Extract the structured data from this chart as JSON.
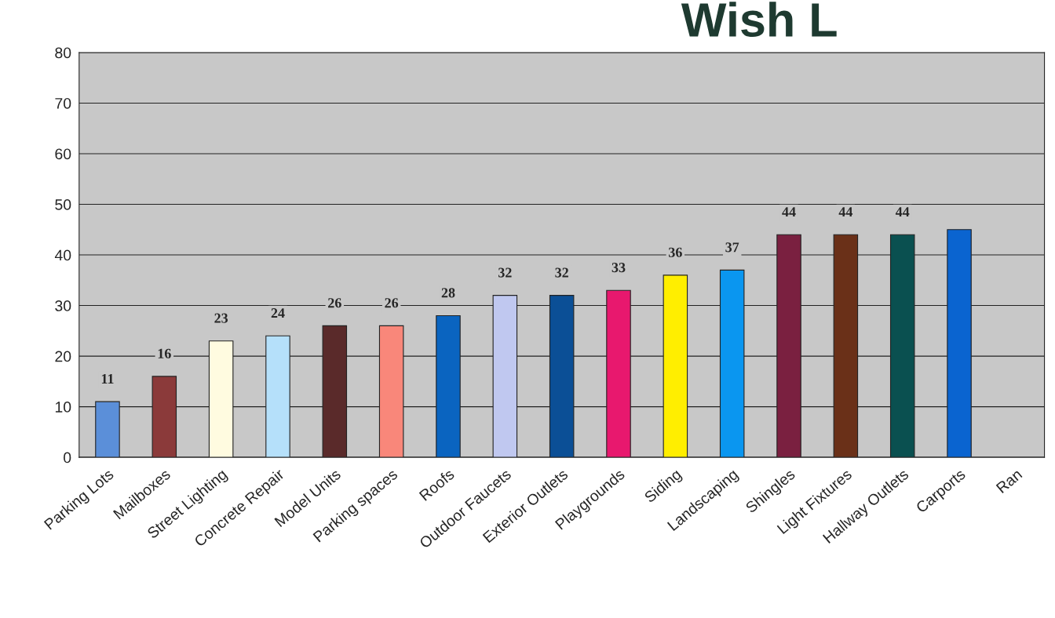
{
  "chart_data": {
    "type": "bar",
    "title": "Wish L",
    "categories": [
      "Parking Lots",
      "Mailboxes",
      "Street Lighting",
      "Concrete Repair",
      "Model Units",
      "Parking spaces",
      "Roofs",
      "Outdoor Faucets",
      "Exterior Outlets",
      "Playgrounds",
      "Siding",
      "Landscaping",
      "Shingles",
      "Light Fixtures",
      "Hallway Outlets",
      "Carports",
      "Ran"
    ],
    "values": [
      11,
      16,
      23,
      24,
      26,
      26,
      28,
      32,
      32,
      33,
      36,
      37,
      44,
      44,
      44,
      45,
      null
    ],
    "value_labels": [
      "11",
      "16",
      "23",
      "24",
      "26",
      "26",
      "28",
      "32",
      "32",
      "33",
      "36",
      "37",
      "44",
      "44",
      "44",
      null,
      null
    ],
    "colors": [
      "#5b8fd9",
      "#8b3a3a",
      "#fffbe0",
      "#b5e0fa",
      "#5a2a2a",
      "#f9877a",
      "#0a64c0",
      "#c0c8f0",
      "#0b4f96",
      "#e8186e",
      "#ffee00",
      "#0a96f0",
      "#7a2040",
      "#6a3018",
      "#0a5050",
      "#0a64d0",
      "#0a64d0"
    ],
    "ylim": [
      0,
      80
    ],
    "yticks": [
      0,
      10,
      20,
      30,
      40,
      50,
      60,
      70,
      80
    ],
    "grid": "y",
    "legend": false
  }
}
